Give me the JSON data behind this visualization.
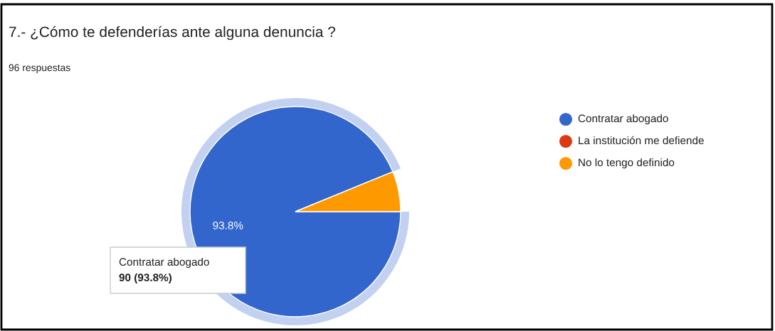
{
  "chart_data": {
    "type": "pie",
    "title": "7.- ¿Cómo te defenderías ante alguna denuncia ?",
    "subtitle": "96 respuestas",
    "categories": [
      "Contratar abogado",
      "La institución me defiende",
      "No lo tengo definido"
    ],
    "values": [
      93.8,
      0,
      6.2
    ],
    "colors": [
      "#3366cc",
      "#dc3912",
      "#ff9900"
    ],
    "value_labels": [
      "93.8%",
      null,
      null
    ],
    "annotations": [
      "Contratar abogado",
      "90 (93.8%)"
    ],
    "legend": "right"
  }
}
